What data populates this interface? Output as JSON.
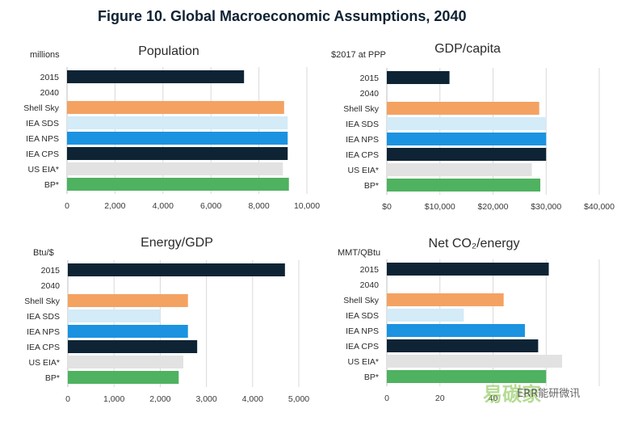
{
  "figure_title": "Figure 10. Global Macroeconomic Assumptions, 2040",
  "watermark": "易碳家",
  "watermark_sub": "ERR能研微讯",
  "colors": {
    "2015": "#0e2435",
    "Shell Sky": "#f4a262",
    "IEA SDS": "#d4ebf8",
    "IEA NPS": "#1b93e0",
    "IEA CPS": "#0e2435",
    "US EIA*": "#e2e2e2",
    "BP*": "#4fb260"
  },
  "chart_data": [
    {
      "type": "bar",
      "title": "Population",
      "unit_label": "millions",
      "categories": [
        "2015",
        "2040",
        "Shell Sky",
        "IEA SDS",
        "IEA NPS",
        "IEA CPS",
        "US EIA*",
        "BP*"
      ],
      "values": [
        7380,
        null,
        9050,
        9200,
        9200,
        9200,
        9000,
        9250
      ],
      "xlim": [
        0,
        10000
      ],
      "ticks": [
        "0",
        "2,000",
        "4,000",
        "6,000",
        "8,000",
        "10,000"
      ],
      "grid": true
    },
    {
      "type": "bar",
      "title": "GDP/capita",
      "unit_label": "$2017 at PPP",
      "categories": [
        "2015",
        "2040",
        "Shell Sky",
        "IEA SDS",
        "IEA NPS",
        "IEA CPS",
        "US EIA*",
        "BP*"
      ],
      "values": [
        11800,
        null,
        28700,
        30000,
        30000,
        30000,
        27300,
        28900
      ],
      "xlim": [
        0,
        40000
      ],
      "ticks": [
        "$0",
        "$10,000",
        "$20,000",
        "$30,000",
        "$40,000"
      ],
      "grid": true
    },
    {
      "type": "bar",
      "title": "Energy/GDP",
      "unit_label": "Btu/$",
      "categories": [
        "2015",
        "2040",
        "Shell Sky",
        "IEA SDS",
        "IEA NPS",
        "IEA CPS",
        "US EIA*",
        "BP*"
      ],
      "values": [
        4700,
        null,
        2600,
        2000,
        2600,
        2800,
        2500,
        2400
      ],
      "xlim": [
        0,
        5000
      ],
      "ticks": [
        "0",
        "1,000",
        "2,000",
        "3,000",
        "4,000",
        "5,000"
      ],
      "grid": true
    },
    {
      "type": "bar",
      "title": "Net CO₂/energy",
      "unit_label": "MMT/QBtu",
      "categories": [
        "2015",
        "2040",
        "Shell Sky",
        "IEA SDS",
        "IEA NPS",
        "IEA CPS",
        "US EIA*",
        "BP*"
      ],
      "values": [
        61,
        null,
        44,
        29,
        52,
        57,
        66,
        60
      ],
      "xlim": [
        0,
        80
      ],
      "ticks": [
        "0",
        "20",
        "40",
        "",
        ""
      ],
      "grid": true
    }
  ]
}
